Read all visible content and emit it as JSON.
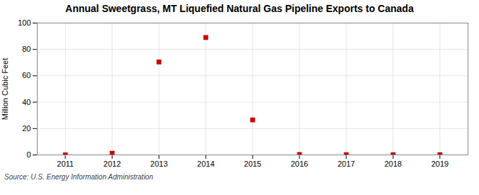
{
  "chart_data": {
    "type": "scatter",
    "title": "Annual Sweetgrass, MT Liquefied Natural Gas Pipeline Exports to Canada",
    "ylabel": "Million Cubic Feet",
    "source": "Source: U.S. Energy Information Administration",
    "x": [
      2011,
      2012,
      2013,
      2014,
      2015,
      2016,
      2017,
      2018,
      2019
    ],
    "values": [
      0,
      1.2,
      70.5,
      89.0,
      26.5,
      0.3,
      0.15,
      0.2,
      0.15
    ],
    "xlim": [
      2010.4,
      2019.6
    ],
    "ylim": [
      0,
      100
    ],
    "xticks": [
      2011,
      2012,
      2013,
      2014,
      2015,
      2016,
      2017,
      2018,
      2019
    ],
    "yticks": [
      0,
      20,
      40,
      60,
      80,
      100
    ],
    "color": "#cc0000",
    "marker": "square",
    "grid": true
  }
}
